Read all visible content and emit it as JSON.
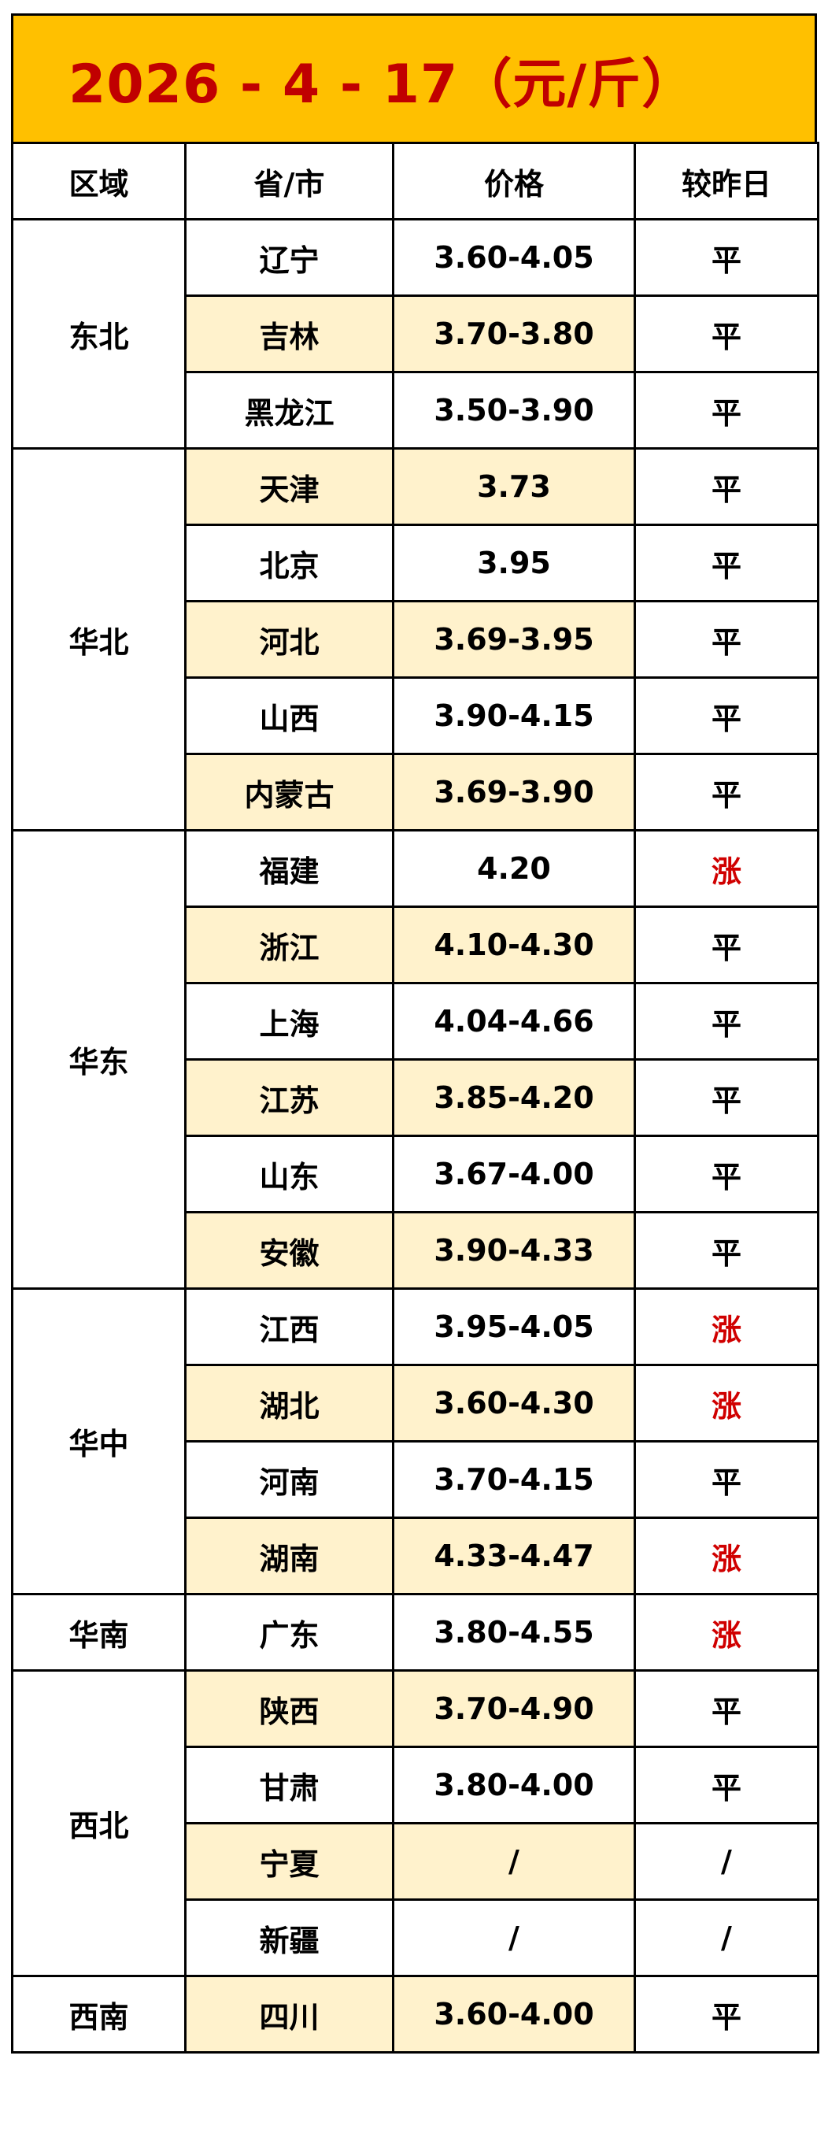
{
  "title": "2026 - 4 - 17（元/斤）",
  "headers": [
    "区域",
    "省/市",
    "价格",
    "较昨日"
  ],
  "colors": {
    "title_bg": "#ffc000",
    "title_text": "#c00000",
    "highlight": "#fff2cc",
    "up": "#d00000"
  },
  "regions": [
    {
      "name": "东北",
      "rows": [
        {
          "province": "辽宁",
          "price": "3.60-4.05",
          "change": "平",
          "highlight": false
        },
        {
          "province": "吉林",
          "price": "3.70-3.80",
          "change": "平",
          "highlight": true
        },
        {
          "province": "黑龙江",
          "price": "3.50-3.90",
          "change": "平",
          "highlight": false
        }
      ]
    },
    {
      "name": "华北",
      "rows": [
        {
          "province": "天津",
          "price": "3.73",
          "change": "平",
          "highlight": true
        },
        {
          "province": "北京",
          "price": "3.95",
          "change": "平",
          "highlight": false
        },
        {
          "province": "河北",
          "price": "3.69-3.95",
          "change": "平",
          "highlight": true
        },
        {
          "province": "山西",
          "price": "3.90-4.15",
          "change": "平",
          "highlight": false
        },
        {
          "province": "内蒙古",
          "price": "3.69-3.90",
          "change": "平",
          "highlight": true
        }
      ]
    },
    {
      "name": "华东",
      "rows": [
        {
          "province": "福建",
          "price": "4.20",
          "change": "涨",
          "highlight": false
        },
        {
          "province": "浙江",
          "price": "4.10-4.30",
          "change": "平",
          "highlight": true
        },
        {
          "province": "上海",
          "price": "4.04-4.66",
          "change": "平",
          "highlight": false
        },
        {
          "province": "江苏",
          "price": "3.85-4.20",
          "change": "平",
          "highlight": true
        },
        {
          "province": "山东",
          "price": "3.67-4.00",
          "change": "平",
          "highlight": false
        },
        {
          "province": "安徽",
          "price": "3.90-4.33",
          "change": "平",
          "highlight": true
        }
      ]
    },
    {
      "name": "华中",
      "rows": [
        {
          "province": "江西",
          "price": "3.95-4.05",
          "change": "涨",
          "highlight": false
        },
        {
          "province": "湖北",
          "price": "3.60-4.30",
          "change": "涨",
          "highlight": true
        },
        {
          "province": "河南",
          "price": "3.70-4.15",
          "change": "平",
          "highlight": false
        },
        {
          "province": "湖南",
          "price": "4.33-4.47",
          "change": "涨",
          "highlight": true
        }
      ]
    },
    {
      "name": "华南",
      "rows": [
        {
          "province": "广东",
          "price": "3.80-4.55",
          "change": "涨",
          "highlight": false
        }
      ]
    },
    {
      "name": "西北",
      "rows": [
        {
          "province": "陕西",
          "price": "3.70-4.90",
          "change": "平",
          "highlight": true
        },
        {
          "province": "甘肃",
          "price": "3.80-4.00",
          "change": "平",
          "highlight": false
        },
        {
          "province": "宁夏",
          "price": "/",
          "change": "/",
          "highlight": true
        },
        {
          "province": "新疆",
          "price": "/",
          "change": "/",
          "highlight": false
        }
      ]
    },
    {
      "name": "西南",
      "rows": [
        {
          "province": "四川",
          "price": "3.60-4.00",
          "change": "平",
          "highlight": true
        }
      ]
    }
  ]
}
